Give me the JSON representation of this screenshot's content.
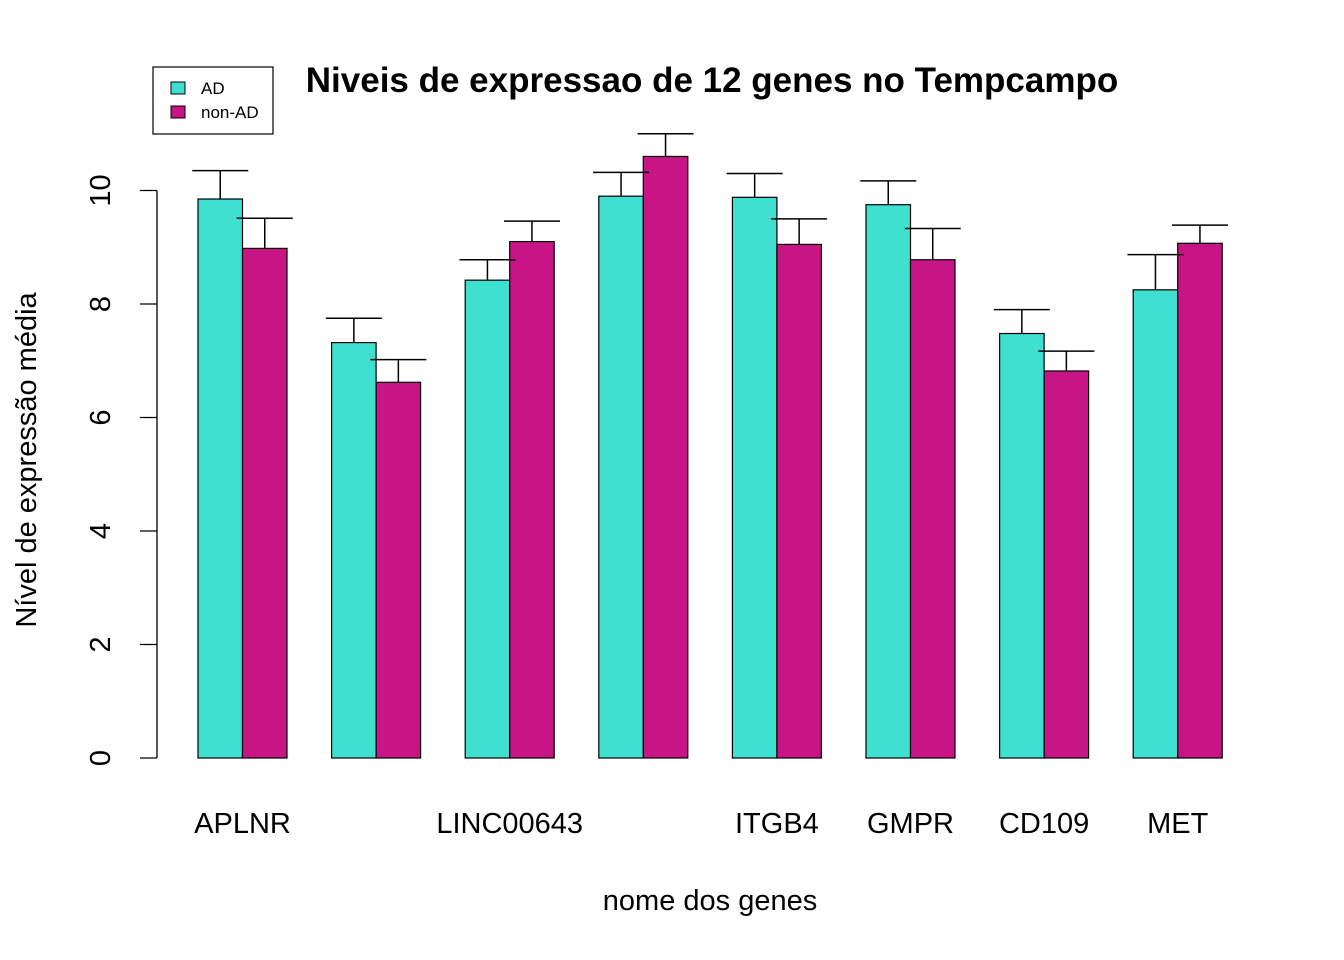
{
  "chart_data": {
    "type": "bar",
    "title": "Niveis de expressao de 12 genes no Tempcampo",
    "xlabel": "nome dos genes",
    "ylabel": "Nível de expressão média",
    "ylim": [
      0,
      11
    ],
    "yticks": [
      0,
      2,
      4,
      6,
      8,
      10
    ],
    "grid": false,
    "legend_position": "top-left",
    "categories": [
      "APLNR",
      "",
      "LINC00643",
      "",
      "ITGB4",
      "GMPR",
      "CD109",
      "MET"
    ],
    "series": [
      {
        "name": "AD",
        "color": "#40e0d0",
        "values": [
          9.85,
          7.32,
          8.42,
          9.9,
          9.88,
          9.75,
          7.48,
          8.25
        ],
        "error": [
          0.5,
          0.43,
          0.36,
          0.42,
          0.42,
          0.42,
          0.42,
          0.62
        ]
      },
      {
        "name": "non-AD",
        "color": "#c71585",
        "values": [
          8.98,
          6.62,
          9.1,
          10.6,
          9.05,
          8.78,
          6.82,
          9.07
        ],
        "error": [
          0.53,
          0.4,
          0.36,
          0.4,
          0.45,
          0.55,
          0.35,
          0.32
        ]
      }
    ]
  }
}
